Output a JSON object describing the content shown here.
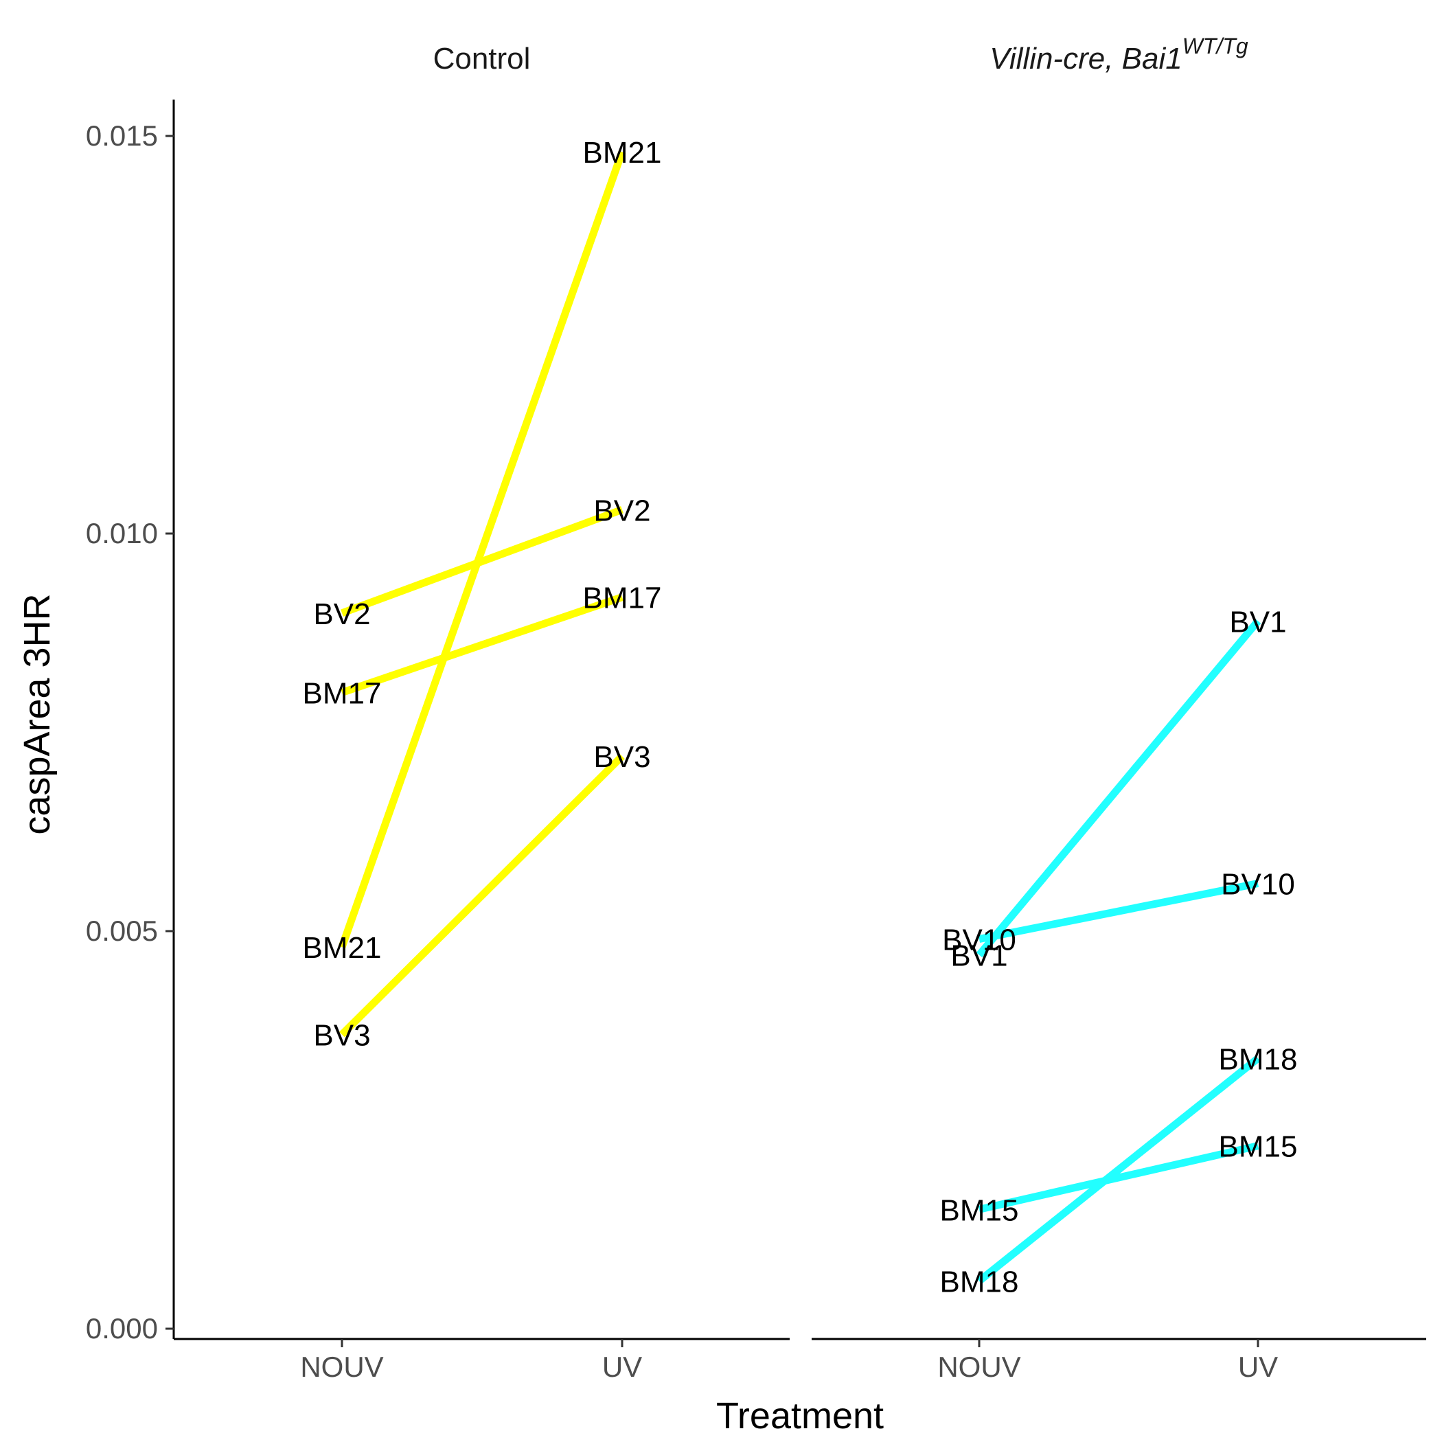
{
  "chart_data": {
    "type": "line",
    "xlabel": "Treatment",
    "ylabel": "caspArea 3HR",
    "categories": [
      "NOUV",
      "UV"
    ],
    "ylim": [
      0,
      0.0155
    ],
    "yticks": [
      0.0,
      0.005,
      0.01,
      0.015
    ],
    "ytick_labels": [
      "0.000",
      "0.005",
      "0.010",
      "0.015"
    ],
    "grid": false,
    "legend": "none",
    "facets": [
      {
        "title": "Control",
        "title_italic": false,
        "color": "#ffff00",
        "series": [
          {
            "label": "BM21",
            "values": [
              0.0048,
              0.0148
            ]
          },
          {
            "label": "BV2",
            "values": [
              0.009,
              0.0103
            ]
          },
          {
            "label": "BM17",
            "values": [
              0.008,
              0.0092
            ]
          },
          {
            "label": "BV3",
            "values": [
              0.0037,
              0.0072
            ]
          }
        ]
      },
      {
        "title": "Villin-cre, Bai1",
        "title_sup": "WT/Tg",
        "title_italic": true,
        "color": "#22ffff",
        "series": [
          {
            "label": "BV1",
            "values": [
              0.0047,
              0.0089
            ]
          },
          {
            "label": "BV10",
            "values": [
              0.0049,
              0.0056
            ]
          },
          {
            "label": "BM18",
            "values": [
              0.0006,
              0.0034
            ]
          },
          {
            "label": "BM15",
            "values": [
              0.0015,
              0.0023
            ]
          }
        ]
      }
    ]
  }
}
